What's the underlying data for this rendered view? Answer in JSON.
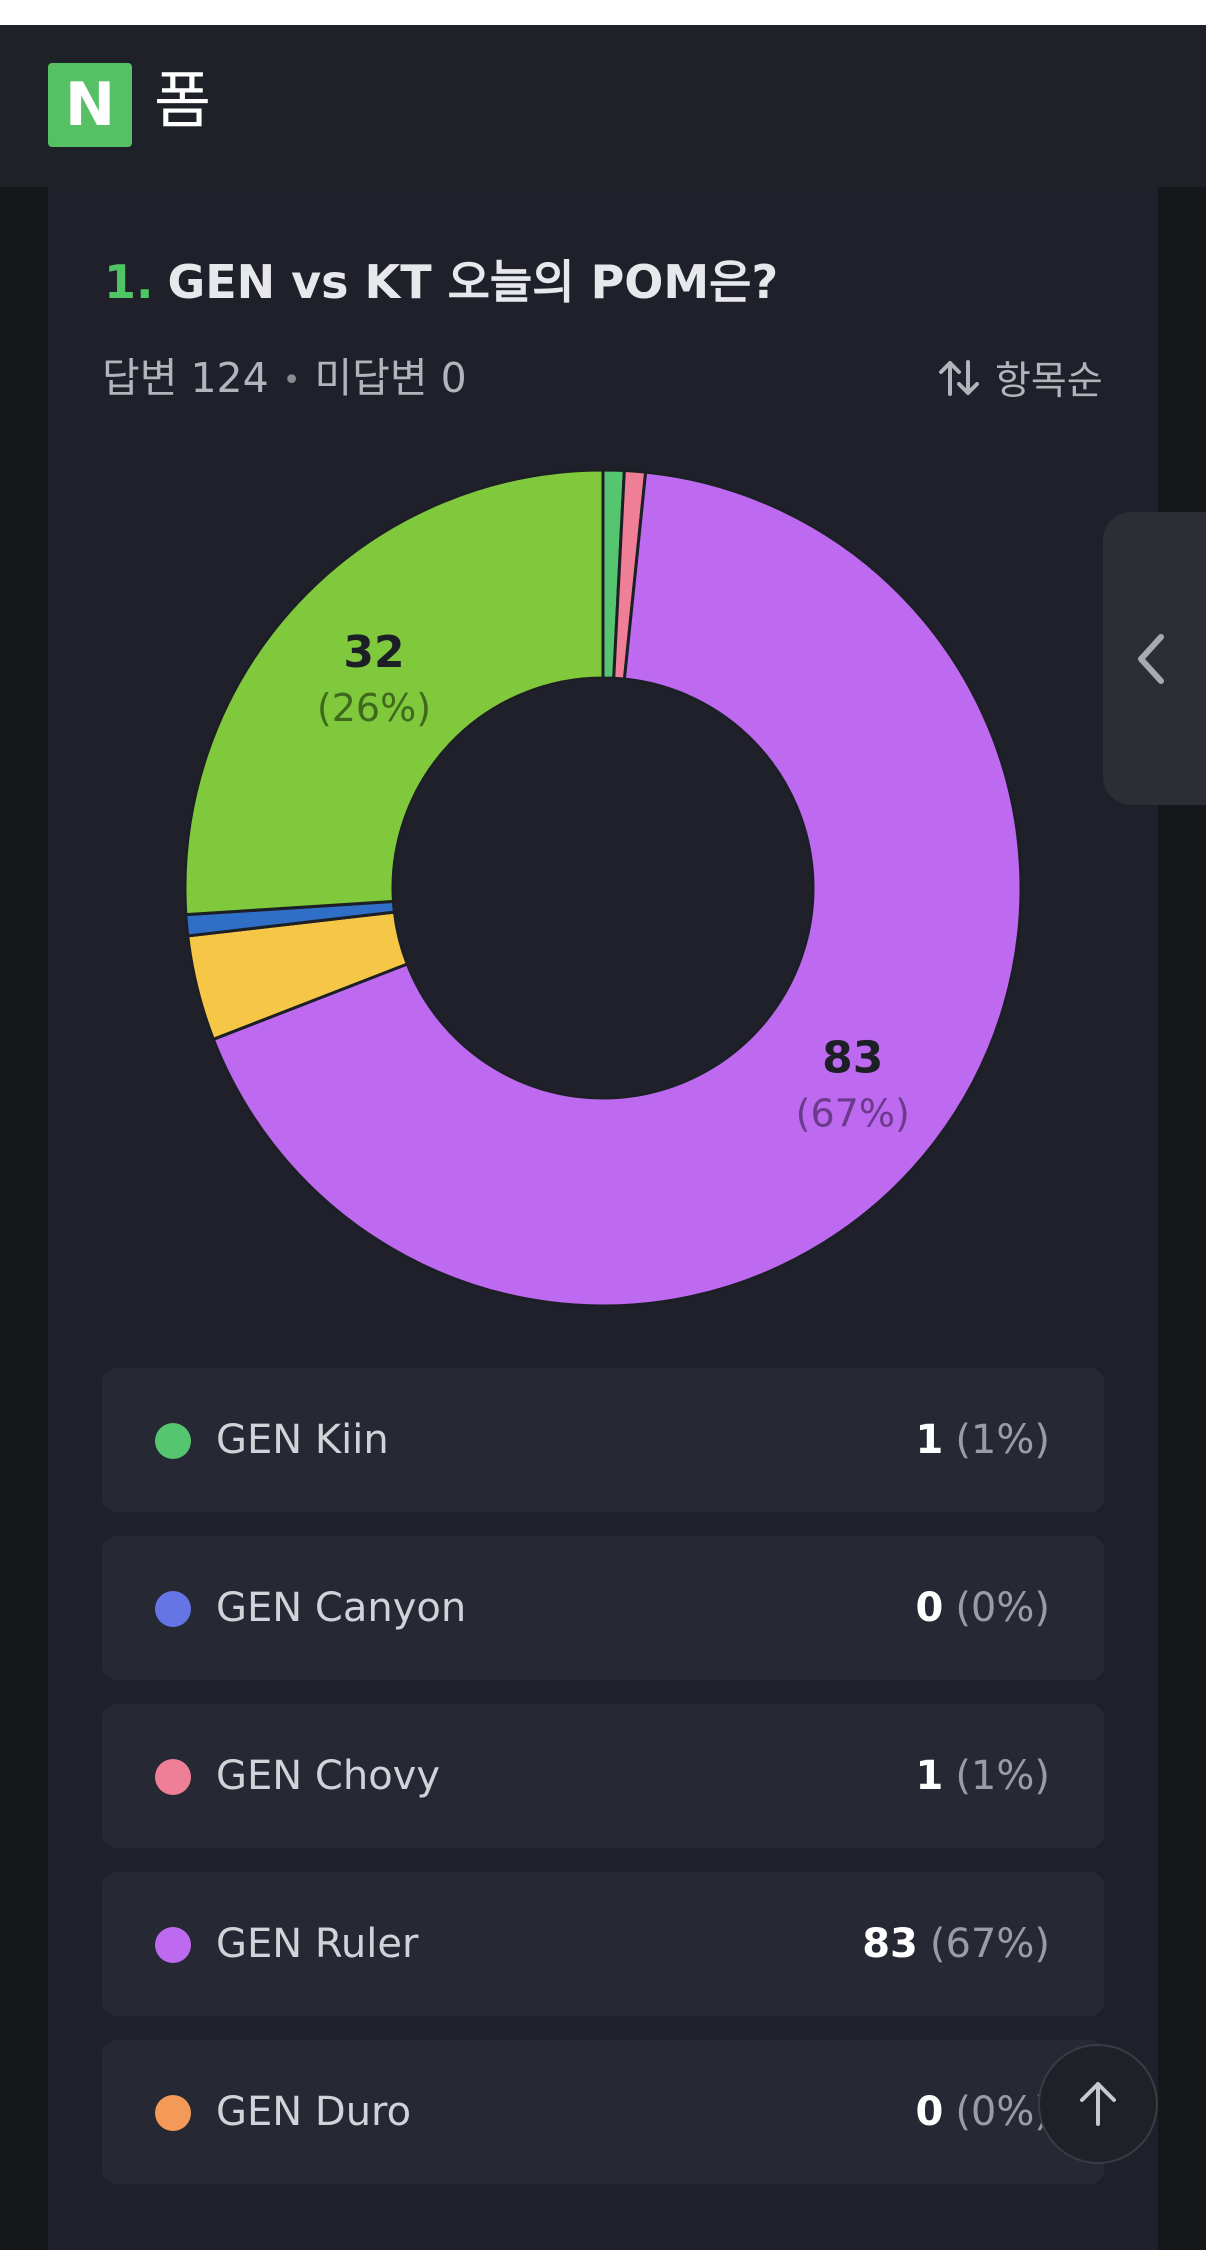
{
  "header": {
    "logo_letter": "N",
    "title": "폼"
  },
  "question": {
    "number": "1.",
    "title": "GEN vs KT 오늘의 POM은?",
    "answered": "답변 124",
    "separator": "•",
    "unanswered": "미답변 0",
    "sort_label": "항목순"
  },
  "icons": {
    "sort": "sort-arrows-icon",
    "side_tab": "chevron-left-icon",
    "scroll_top": "arrow-up-icon"
  },
  "chart_data": {
    "type": "pie",
    "variant": "donut",
    "categories": [
      "GEN Kiin",
      "GEN Canyon",
      "GEN Chovy",
      "GEN Ruler",
      "GEN Duro",
      "other-yellow",
      "other-blue",
      "other-green"
    ],
    "series": [
      {
        "values": [
          1,
          0,
          1,
          83,
          0,
          5,
          1,
          32
        ],
        "colors": [
          "#55c56f",
          "#6675e6",
          "#ef7f96",
          "#bd6af0",
          "#f39a58",
          "#f6c747",
          "#2f6fc7",
          "#80c93d"
        ]
      }
    ],
    "labels": [
      {
        "value": "32",
        "percent": "(26%)",
        "slice": 7,
        "pct_color": "#3f6a1d"
      },
      {
        "value": "83",
        "percent": "(67%)",
        "slice": 3,
        "pct_color": "#6c3a8c"
      }
    ]
  },
  "options": [
    {
      "label": "GEN Kiin",
      "count": "1",
      "percent": "(1%)",
      "color": "#55c56f"
    },
    {
      "label": "GEN Canyon",
      "count": "0",
      "percent": "(0%)",
      "color": "#6675e6"
    },
    {
      "label": "GEN Chovy",
      "count": "1",
      "percent": "(1%)",
      "color": "#ef7f96"
    },
    {
      "label": "GEN Ruler",
      "count": "83",
      "percent": "(67%)",
      "color": "#bd6af0"
    },
    {
      "label": "GEN Duro",
      "count": "0",
      "percent": "(0%)",
      "color": "#f39a58"
    }
  ]
}
